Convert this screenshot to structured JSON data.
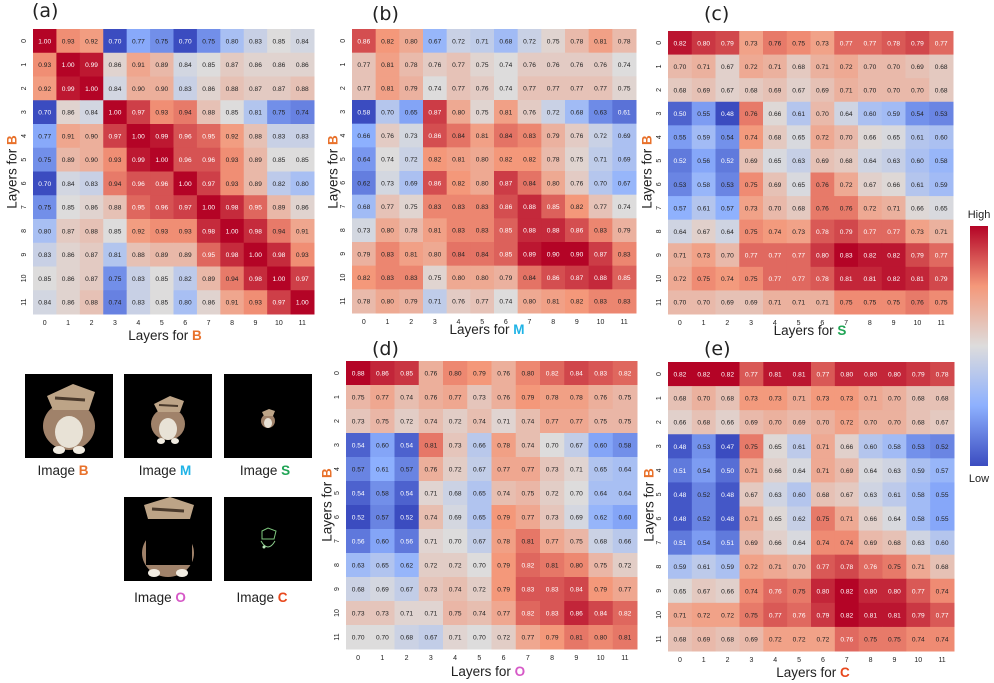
{
  "panel_labels": [
    "(a)",
    "(b)",
    "(c)",
    "(d)",
    "(e)"
  ],
  "axis_prefix": "Layers for ",
  "image_prefix": "Image ",
  "colorbar": {
    "high": "High",
    "low": "Low"
  },
  "letters": {
    "B": {
      "text": "B",
      "color": "#e8712b"
    },
    "M": {
      "text": "M",
      "color": "#1fb3e6"
    },
    "S": {
      "text": "S",
      "color": "#20a455"
    },
    "O": {
      "text": "O",
      "color": "#d659c7"
    },
    "C": {
      "text": "C",
      "color": "#e8481d"
    }
  },
  "images": [
    {
      "letter": "B",
      "content": "full"
    },
    {
      "letter": "M",
      "content": "medium"
    },
    {
      "letter": "S",
      "content": "small"
    },
    {
      "letter": "O",
      "content": "occluded"
    },
    {
      "letter": "C",
      "content": "contour"
    }
  ],
  "chart_data": [
    {
      "type": "heatmap",
      "panel": "(a)",
      "xlabel": "Layers for B",
      "ylabel": "Layers for B",
      "x_ticks": [
        "0",
        "1",
        "2",
        "3",
        "4",
        "5",
        "6",
        "7",
        "8",
        "9",
        "10",
        "11"
      ],
      "y_ticks": [
        "0",
        "1",
        "2",
        "3",
        "4",
        "5",
        "6",
        "7",
        "8",
        "9",
        "10",
        "11"
      ],
      "color_scale": {
        "map": "coolwarm",
        "low": 0.7,
        "high": 1.0
      },
      "values": [
        [
          1.0,
          0.93,
          0.92,
          0.7,
          0.77,
          0.75,
          0.7,
          0.75,
          0.8,
          0.83,
          0.85,
          0.84
        ],
        [
          0.93,
          1.0,
          0.99,
          0.86,
          0.91,
          0.89,
          0.84,
          0.85,
          0.87,
          0.86,
          0.86,
          0.86
        ],
        [
          0.92,
          0.99,
          1.0,
          0.84,
          0.9,
          0.9,
          0.83,
          0.86,
          0.88,
          0.87,
          0.87,
          0.88
        ],
        [
          0.7,
          0.86,
          0.84,
          1.0,
          0.97,
          0.93,
          0.94,
          0.88,
          0.85,
          0.81,
          0.75,
          0.74
        ],
        [
          0.77,
          0.91,
          0.9,
          0.97,
          1.0,
          0.99,
          0.96,
          0.95,
          0.92,
          0.88,
          0.83,
          0.83
        ],
        [
          0.75,
          0.89,
          0.9,
          0.93,
          0.99,
          1.0,
          0.96,
          0.96,
          0.93,
          0.89,
          0.85,
          0.85
        ],
        [
          0.7,
          0.84,
          0.83,
          0.94,
          0.96,
          0.96,
          1.0,
          0.97,
          0.93,
          0.89,
          0.82,
          0.8
        ],
        [
          0.75,
          0.85,
          0.86,
          0.88,
          0.95,
          0.96,
          0.97,
          1.0,
          0.98,
          0.95,
          0.89,
          0.86
        ],
        [
          0.8,
          0.87,
          0.88,
          0.85,
          0.92,
          0.93,
          0.93,
          0.98,
          1.0,
          0.98,
          0.94,
          0.91
        ],
        [
          0.83,
          0.86,
          0.87,
          0.81,
          0.88,
          0.89,
          0.89,
          0.95,
          0.98,
          1.0,
          0.98,
          0.93
        ],
        [
          0.85,
          0.86,
          0.87,
          0.75,
          0.83,
          0.85,
          0.82,
          0.89,
          0.94,
          0.98,
          1.0,
          0.97
        ],
        [
          0.84,
          0.86,
          0.88,
          0.74,
          0.83,
          0.85,
          0.8,
          0.86,
          0.91,
          0.93,
          0.97,
          1.0
        ]
      ]
    },
    {
      "type": "heatmap",
      "panel": "(b)",
      "xlabel": "Layers for M",
      "ylabel": "Layers for B",
      "x_ticks": [
        "0",
        "1",
        "2",
        "3",
        "4",
        "5",
        "6",
        "7",
        "8",
        "9",
        "10",
        "11"
      ],
      "y_ticks": [
        "0",
        "1",
        "2",
        "3",
        "4",
        "5",
        "6",
        "7",
        "8",
        "9",
        "10",
        "11"
      ],
      "color_scale": {
        "map": "coolwarm",
        "low": 0.58,
        "high": 0.9
      },
      "values": [
        [
          0.86,
          0.82,
          0.8,
          0.67,
          0.72,
          0.71,
          0.68,
          0.72,
          0.75,
          0.78,
          0.81,
          0.78
        ],
        [
          0.77,
          0.81,
          0.78,
          0.76,
          0.77,
          0.75,
          0.74,
          0.76,
          0.76,
          0.76,
          0.76,
          0.74
        ],
        [
          0.77,
          0.81,
          0.79,
          0.74,
          0.77,
          0.76,
          0.74,
          0.77,
          0.77,
          0.77,
          0.77,
          0.75
        ],
        [
          0.58,
          0.7,
          0.65,
          0.87,
          0.8,
          0.75,
          0.81,
          0.76,
          0.72,
          0.68,
          0.63,
          0.61
        ],
        [
          0.66,
          0.76,
          0.73,
          0.86,
          0.84,
          0.81,
          0.84,
          0.83,
          0.79,
          0.76,
          0.72,
          0.69
        ],
        [
          0.64,
          0.74,
          0.72,
          0.82,
          0.81,
          0.8,
          0.82,
          0.82,
          0.78,
          0.75,
          0.71,
          0.69
        ],
        [
          0.62,
          0.73,
          0.69,
          0.86,
          0.82,
          0.8,
          0.87,
          0.84,
          0.8,
          0.76,
          0.7,
          0.67
        ],
        [
          0.68,
          0.77,
          0.75,
          0.83,
          0.83,
          0.83,
          0.86,
          0.88,
          0.85,
          0.82,
          0.77,
          0.74
        ],
        [
          0.73,
          0.8,
          0.78,
          0.81,
          0.83,
          0.83,
          0.85,
          0.88,
          0.88,
          0.86,
          0.83,
          0.79
        ],
        [
          0.79,
          0.83,
          0.81,
          0.8,
          0.84,
          0.84,
          0.85,
          0.89,
          0.9,
          0.9,
          0.87,
          0.83
        ],
        [
          0.82,
          0.83,
          0.83,
          0.75,
          0.8,
          0.8,
          0.79,
          0.84,
          0.86,
          0.87,
          0.88,
          0.85
        ],
        [
          0.78,
          0.8,
          0.79,
          0.71,
          0.76,
          0.77,
          0.74,
          0.8,
          0.81,
          0.82,
          0.83,
          0.83
        ]
      ]
    },
    {
      "type": "heatmap",
      "panel": "(c)",
      "xlabel": "Layers for S",
      "ylabel": "Layers for B",
      "x_ticks": [
        "0",
        "1",
        "2",
        "3",
        "4",
        "5",
        "6",
        "7",
        "8",
        "9",
        "10",
        "11"
      ],
      "y_ticks": [
        "0",
        "1",
        "2",
        "3",
        "4",
        "5",
        "6",
        "7",
        "8",
        "9",
        "10",
        "11"
      ],
      "color_scale": {
        "map": "coolwarm",
        "low": 0.48,
        "high": 0.83
      },
      "values": [
        [
          0.82,
          0.8,
          0.79,
          0.73,
          0.76,
          0.75,
          0.73,
          0.77,
          0.77,
          0.78,
          0.79,
          0.77
        ],
        [
          0.7,
          0.71,
          0.67,
          0.72,
          0.71,
          0.68,
          0.71,
          0.72,
          0.7,
          0.7,
          0.69,
          0.68
        ],
        [
          0.68,
          0.69,
          0.67,
          0.68,
          0.69,
          0.67,
          0.69,
          0.71,
          0.7,
          0.7,
          0.7,
          0.68
        ],
        [
          0.5,
          0.55,
          0.48,
          0.76,
          0.66,
          0.61,
          0.7,
          0.64,
          0.6,
          0.59,
          0.54,
          0.53
        ],
        [
          0.55,
          0.59,
          0.54,
          0.74,
          0.68,
          0.65,
          0.72,
          0.7,
          0.66,
          0.65,
          0.61,
          0.6
        ],
        [
          0.52,
          0.56,
          0.52,
          0.69,
          0.65,
          0.63,
          0.69,
          0.68,
          0.64,
          0.63,
          0.6,
          0.58
        ],
        [
          0.53,
          0.58,
          0.53,
          0.75,
          0.69,
          0.65,
          0.76,
          0.72,
          0.67,
          0.66,
          0.61,
          0.59
        ],
        [
          0.57,
          0.61,
          0.57,
          0.73,
          0.7,
          0.68,
          0.76,
          0.76,
          0.72,
          0.71,
          0.66,
          0.65
        ],
        [
          0.64,
          0.67,
          0.64,
          0.75,
          0.74,
          0.73,
          0.78,
          0.79,
          0.77,
          0.77,
          0.73,
          0.71
        ],
        [
          0.71,
          0.73,
          0.7,
          0.77,
          0.77,
          0.77,
          0.8,
          0.83,
          0.82,
          0.82,
          0.79,
          0.77
        ],
        [
          0.72,
          0.75,
          0.74,
          0.75,
          0.77,
          0.77,
          0.78,
          0.81,
          0.81,
          0.82,
          0.81,
          0.79
        ],
        [
          0.7,
          0.7,
          0.69,
          0.69,
          0.71,
          0.71,
          0.71,
          0.75,
          0.75,
          0.75,
          0.76,
          0.75
        ]
      ]
    },
    {
      "type": "heatmap",
      "panel": "(d)",
      "xlabel": "Layers for O",
      "ylabel": "Layers for B",
      "x_ticks": [
        "0",
        "1",
        "2",
        "3",
        "4",
        "5",
        "6",
        "7",
        "8",
        "9",
        "10",
        "11"
      ],
      "y_ticks": [
        "0",
        "1",
        "2",
        "3",
        "4",
        "5",
        "6",
        "7",
        "8",
        "9",
        "10",
        "11"
      ],
      "color_scale": {
        "map": "coolwarm",
        "low": 0.52,
        "high": 0.88
      },
      "values": [
        [
          0.88,
          0.86,
          0.85,
          0.76,
          0.8,
          0.79,
          0.76,
          0.8,
          0.82,
          0.84,
          0.83,
          0.82
        ],
        [
          0.75,
          0.77,
          0.74,
          0.76,
          0.77,
          0.73,
          0.76,
          0.79,
          0.78,
          0.78,
          0.76,
          0.75
        ],
        [
          0.73,
          0.75,
          0.72,
          0.74,
          0.72,
          0.74,
          0.71,
          0.74,
          0.77,
          0.77,
          0.75,
          0.75
        ],
        [
          0.54,
          0.6,
          0.54,
          0.81,
          0.73,
          0.66,
          0.78,
          0.74,
          0.7,
          0.67,
          0.6,
          0.58
        ],
        [
          0.57,
          0.61,
          0.57,
          0.76,
          0.72,
          0.67,
          0.77,
          0.77,
          0.73,
          0.71,
          0.65,
          0.64
        ],
        [
          0.54,
          0.58,
          0.54,
          0.71,
          0.68,
          0.65,
          0.74,
          0.75,
          0.72,
          0.7,
          0.64,
          0.64
        ],
        [
          0.52,
          0.57,
          0.52,
          0.74,
          0.69,
          0.65,
          0.79,
          0.77,
          0.73,
          0.69,
          0.62,
          0.6
        ],
        [
          0.56,
          0.6,
          0.56,
          0.71,
          0.7,
          0.67,
          0.78,
          0.81,
          0.77,
          0.75,
          0.68,
          0.66
        ],
        [
          0.63,
          0.65,
          0.62,
          0.72,
          0.72,
          0.7,
          0.79,
          0.82,
          0.81,
          0.8,
          0.75,
          0.72
        ],
        [
          0.68,
          0.69,
          0.67,
          0.73,
          0.74,
          0.72,
          0.79,
          0.83,
          0.83,
          0.84,
          0.79,
          0.77
        ],
        [
          0.73,
          0.73,
          0.71,
          0.71,
          0.75,
          0.74,
          0.77,
          0.82,
          0.83,
          0.86,
          0.84,
          0.82
        ],
        [
          0.7,
          0.7,
          0.68,
          0.67,
          0.71,
          0.7,
          0.72,
          0.77,
          0.79,
          0.81,
          0.8,
          0.81
        ]
      ]
    },
    {
      "type": "heatmap",
      "panel": "(e)",
      "xlabel": "Layers for C",
      "ylabel": "Layers for B",
      "x_ticks": [
        "0",
        "1",
        "2",
        "3",
        "4",
        "5",
        "6",
        "7",
        "8",
        "9",
        "10",
        "11"
      ],
      "y_ticks": [
        "0",
        "1",
        "2",
        "3",
        "4",
        "5",
        "6",
        "7",
        "8",
        "9",
        "10",
        "11"
      ],
      "color_scale": {
        "map": "coolwarm",
        "low": 0.47,
        "high": 0.82
      },
      "values": [
        [
          0.82,
          0.82,
          0.82,
          0.77,
          0.81,
          0.81,
          0.77,
          0.8,
          0.8,
          0.8,
          0.79,
          0.78
        ],
        [
          0.68,
          0.7,
          0.68,
          0.73,
          0.73,
          0.71,
          0.73,
          0.73,
          0.71,
          0.7,
          0.68,
          0.68
        ],
        [
          0.66,
          0.68,
          0.66,
          0.69,
          0.7,
          0.69,
          0.7,
          0.72,
          0.7,
          0.7,
          0.68,
          0.67
        ],
        [
          0.48,
          0.53,
          0.47,
          0.75,
          0.65,
          0.61,
          0.71,
          0.66,
          0.6,
          0.58,
          0.53,
          0.52
        ],
        [
          0.51,
          0.54,
          0.5,
          0.71,
          0.66,
          0.64,
          0.71,
          0.69,
          0.64,
          0.63,
          0.59,
          0.57
        ],
        [
          0.48,
          0.52,
          0.48,
          0.67,
          0.63,
          0.6,
          0.68,
          0.67,
          0.63,
          0.61,
          0.58,
          0.55
        ],
        [
          0.48,
          0.52,
          0.48,
          0.71,
          0.65,
          0.62,
          0.75,
          0.71,
          0.66,
          0.64,
          0.58,
          0.55
        ],
        [
          0.51,
          0.54,
          0.51,
          0.69,
          0.66,
          0.64,
          0.74,
          0.74,
          0.69,
          0.68,
          0.63,
          0.6
        ],
        [
          0.59,
          0.61,
          0.59,
          0.72,
          0.71,
          0.7,
          0.77,
          0.78,
          0.76,
          0.75,
          0.71,
          0.68
        ],
        [
          0.65,
          0.67,
          0.66,
          0.74,
          0.76,
          0.75,
          0.8,
          0.82,
          0.8,
          0.8,
          0.77,
          0.74
        ],
        [
          0.71,
          0.72,
          0.72,
          0.75,
          0.77,
          0.76,
          0.79,
          0.82,
          0.81,
          0.81,
          0.79,
          0.77
        ],
        [
          0.68,
          0.69,
          0.68,
          0.69,
          0.72,
          0.72,
          0.72,
          0.76,
          0.75,
          0.75,
          0.74,
          0.74
        ]
      ]
    }
  ]
}
